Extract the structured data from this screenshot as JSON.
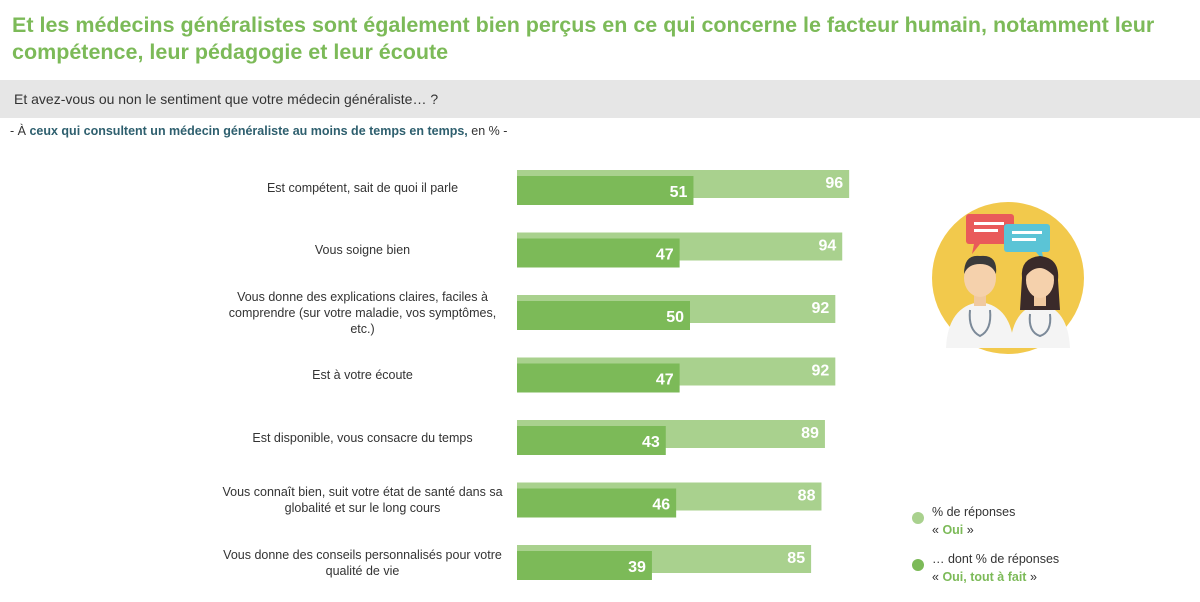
{
  "title": "Et les médecins généralistes sont également bien perçus en ce qui concerne le facteur humain, notamment leur compétence, leur pédagogie et leur écoute",
  "question": "Et avez-vous ou non le sentiment que votre médecin généraliste… ?",
  "subtitle": {
    "prefix": "- À ",
    "highlight": "ceux qui consultent un médecin généraliste au moins de temps en temps,",
    "suffix": " en % -"
  },
  "colors": {
    "oui": "#a9d18e",
    "tout_a_fait": "#7cba58",
    "title": "#7cba58"
  },
  "illustration": {
    "icons": [
      "speech-bubble-icon",
      "doctor-man-icon",
      "doctor-woman-icon"
    ]
  },
  "chart_data": {
    "type": "bar",
    "orientation": "horizontal",
    "categories": [
      "Est compétent, sait de quoi il parle",
      "Vous soigne bien",
      "Vous donne des explications claires, faciles à comprendre (sur votre maladie, vos symptômes, etc.)",
      "Est à votre écoute",
      "Est disponible, vous consacre du temps",
      "Vous connaît bien, suit votre état de santé dans sa globalité et sur le long cours",
      "Vous donne des conseils personnalisés pour votre qualité de vie"
    ],
    "series": [
      {
        "name": "% de réponses « Oui »",
        "values": [
          96,
          94,
          92,
          92,
          89,
          88,
          85
        ]
      },
      {
        "name": "… dont % de réponses « Oui, tout à fait »",
        "values": [
          51,
          47,
          50,
          47,
          43,
          46,
          39
        ]
      }
    ],
    "xlim": [
      0,
      100
    ],
    "legend_placement": "bottom-right",
    "grid": false
  },
  "legend": {
    "oui": {
      "line1": "% de réponses",
      "pre": "« ",
      "kw": "Oui",
      "post": " »"
    },
    "tout": {
      "line1": "… dont % de réponses",
      "pre": "« ",
      "kw": "Oui, tout à fait",
      "post": " »"
    }
  }
}
